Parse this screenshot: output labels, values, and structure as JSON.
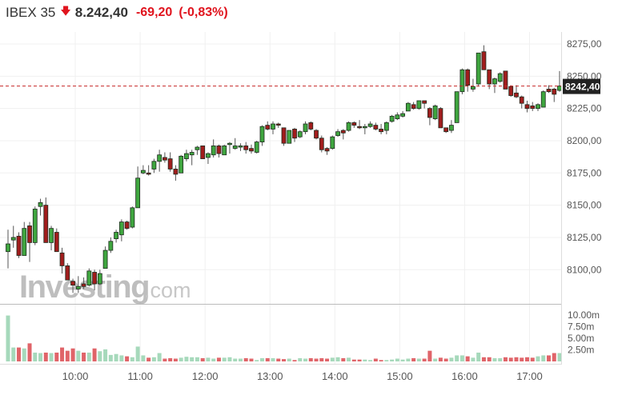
{
  "header": {
    "instrument": "IBEX 35",
    "direction_icon": "arrow-down-icon",
    "last_price": "8.242,40",
    "change": "-69,20",
    "change_percent": "(-0,83%)",
    "down_color": "#e0141e"
  },
  "watermark": {
    "brand": "Investing",
    "suffix": ".com"
  },
  "chart_data": {
    "type": "candlestick",
    "title": "",
    "price_axis": {
      "ticks": [
        8100,
        8125,
        8150,
        8175,
        8200,
        8225,
        8250,
        8275
      ],
      "tick_labels": [
        "8100,00",
        "8125,00",
        "8150,00",
        "8175,00",
        "8200,00",
        "8225,00",
        "8250,00",
        "8275,00"
      ],
      "range": [
        8075,
        8284
      ]
    },
    "current_price": {
      "value": 8242.4,
      "label": "8242,40",
      "line_color": "#c62828",
      "line_style": "dashed"
    },
    "volume_axis": {
      "ticks": [
        2.5,
        5,
        7.5,
        10
      ],
      "tick_labels": [
        "2.50m",
        "5.00m",
        "7.50m",
        "10.00m"
      ],
      "unit": "millions",
      "range": [
        0,
        10.5
      ]
    },
    "time_axis": {
      "tick_labels": [
        "10:00",
        "11:00",
        "12:00",
        "13:00",
        "14:00",
        "15:00",
        "16:00",
        "17:00"
      ]
    },
    "colors": {
      "up": "#3fa63f",
      "down": "#a11d1d",
      "volume_up": "#a6d9bb",
      "volume_down": "#e06469"
    },
    "grid": true,
    "columns": [
      "time",
      "open",
      "high",
      "low",
      "close",
      "volume_m"
    ],
    "candles": [
      [
        "09:00",
        8114,
        8131,
        8101,
        8120,
        9.9
      ],
      [
        "09:05",
        8123,
        8134,
        8117,
        8125,
        3.0
      ],
      [
        "09:10",
        8126,
        8129,
        8109,
        8111,
        3.0
      ],
      [
        "09:15",
        8111,
        8137,
        8111,
        8132,
        2.8
      ],
      [
        "09:20",
        8134,
        8137,
        8106,
        8121,
        3.9
      ],
      [
        "09:25",
        8121,
        8149,
        8119,
        8147,
        1.9
      ],
      [
        "09:30",
        8149,
        8155,
        8142,
        8152,
        1.8
      ],
      [
        "09:35",
        8150,
        8156,
        8121,
        8121,
        1.9
      ],
      [
        "09:40",
        8121,
        8134,
        8115,
        8132,
        1.8
      ],
      [
        "09:45",
        8129,
        8132,
        8114,
        8114,
        1.9
      ],
      [
        "09:50",
        8113,
        8117,
        8097,
        8103,
        3.0
      ],
      [
        "09:55",
        8103,
        8105,
        8092,
        8092,
        2.3
      ],
      [
        "10:00",
        8091,
        8093,
        8082,
        8088,
        2.8
      ],
      [
        "10:05",
        8085,
        8095,
        8082,
        8087,
        2.3
      ],
      [
        "10:10",
        8089,
        8094,
        8085,
        8087,
        1.9
      ],
      [
        "10:15",
        8088,
        8101,
        8087,
        8099,
        1.9
      ],
      [
        "10:20",
        8098,
        8100,
        8084,
        8089,
        2.8
      ],
      [
        "10:25",
        8089,
        8100,
        8088,
        8097,
        2.2
      ],
      [
        "10:30",
        8101,
        8118,
        8101,
        8115,
        2.6
      ],
      [
        "10:35",
        8115,
        8125,
        8113,
        8122,
        1.4
      ],
      [
        "10:40",
        8124,
        8131,
        8121,
        8129,
        1.6
      ],
      [
        "10:45",
        8127,
        8139,
        8122,
        8137,
        1.3
      ],
      [
        "10:50",
        8137,
        8138,
        8131,
        8132,
        1.1
      ],
      [
        "10:55",
        8133,
        8149,
        8132,
        8148,
        0.9
      ],
      [
        "11:00",
        8148,
        8180,
        8148,
        8171,
        3.2
      ],
      [
        "11:05",
        8175,
        8181,
        8174,
        8177,
        1.3
      ],
      [
        "11:10",
        8175,
        8181,
        8173,
        8174,
        0.8
      ],
      [
        "11:15",
        8178,
        8186,
        8175,
        8184,
        0.9
      ],
      [
        "11:20",
        8184,
        8193,
        8176,
        8189,
        1.8
      ],
      [
        "11:25",
        8187,
        8191,
        8183,
        8185,
        0.6
      ],
      [
        "11:30",
        8186,
        8191,
        8176,
        8178,
        0.7
      ],
      [
        "11:35",
        8178,
        8181,
        8169,
        8174,
        0.6
      ],
      [
        "11:40",
        8175,
        8189,
        8175,
        8188,
        0.8
      ],
      [
        "11:45",
        8186,
        8193,
        8184,
        8190,
        1.0
      ],
      [
        "11:50",
        8189,
        8193,
        8181,
        8191,
        0.9
      ],
      [
        "11:55",
        8193,
        8196,
        8189,
        8195,
        0.9
      ],
      [
        "12:00",
        8196,
        8196,
        8186,
        8186,
        0.7
      ],
      [
        "12:05",
        8187,
        8191,
        8182,
        8190,
        0.8
      ],
      [
        "12:10",
        8189,
        8201,
        8187,
        8196,
        0.6
      ],
      [
        "12:15",
        8196,
        8197,
        8187,
        8190,
        0.8
      ],
      [
        "12:20",
        8189,
        8197,
        8189,
        8196,
        0.8
      ],
      [
        "12:25",
        8197,
        8199,
        8190,
        8198,
        0.9
      ],
      [
        "12:30",
        8194,
        8202,
        8193,
        8196,
        0.6
      ],
      [
        "12:35",
        8195,
        8198,
        8192,
        8196,
        0.6
      ],
      [
        "12:40",
        8196,
        8199,
        8190,
        8193,
        0.7
      ],
      [
        "12:45",
        8194,
        8197,
        8190,
        8192,
        0.6
      ],
      [
        "12:50",
        8191,
        8200,
        8190,
        8199,
        0.3
      ],
      [
        "12:55",
        8199,
        8212,
        8196,
        8211,
        0.7
      ],
      [
        "13:00",
        8212,
        8215,
        8208,
        8209,
        0.7
      ],
      [
        "13:05",
        8209,
        8215,
        8205,
        8213,
        0.7
      ],
      [
        "13:10",
        8213,
        8214,
        8210,
        8212,
        0.6
      ],
      [
        "13:15",
        8210,
        8210,
        8196,
        8198,
        0.5
      ],
      [
        "13:20",
        8198,
        8208,
        8198,
        8208,
        0.6
      ],
      [
        "13:25",
        8209,
        8210,
        8199,
        8202,
        0.3
      ],
      [
        "13:30",
        8203,
        8208,
        8202,
        8207,
        0.7
      ],
      [
        "13:35",
        8207,
        8215,
        8205,
        8213,
        0.6
      ],
      [
        "13:40",
        8214,
        8215,
        8208,
        8209,
        0.7
      ],
      [
        "13:45",
        8208,
        8209,
        8201,
        8202,
        0.6
      ],
      [
        "13:50",
        8202,
        8204,
        8191,
        8193,
        0.7
      ],
      [
        "13:55",
        8194,
        8195,
        8189,
        8192,
        0.6
      ],
      [
        "14:00",
        8194,
        8204,
        8193,
        8203,
        0.8
      ],
      [
        "14:05",
        8204,
        8209,
        8203,
        8207,
        0.9
      ],
      [
        "14:10",
        8208,
        8209,
        8201,
        8206,
        0.7
      ],
      [
        "14:15",
        8208,
        8215,
        8207,
        8214,
        0.8
      ],
      [
        "14:20",
        8214,
        8215,
        8210,
        8212,
        0.4
      ],
      [
        "14:25",
        8211,
        8216,
        8209,
        8210,
        0.4
      ],
      [
        "14:30",
        8210,
        8213,
        8205,
        8211,
        0.4
      ],
      [
        "14:35",
        8211,
        8215,
        8210,
        8213,
        0.3
      ],
      [
        "14:40",
        8212,
        8214,
        8208,
        8209,
        0.6
      ],
      [
        "14:45",
        8209,
        8213,
        8205,
        8207,
        0.3
      ],
      [
        "14:50",
        8208,
        8215,
        8205,
        8214,
        0.3
      ],
      [
        "14:55",
        8215,
        8220,
        8214,
        8219,
        0.4
      ],
      [
        "15:00",
        8217,
        8222,
        8216,
        8220,
        0.6
      ],
      [
        "15:05",
        8219,
        8223,
        8218,
        8221,
        0.4
      ],
      [
        "15:10",
        8223,
        8230,
        8223,
        8229,
        0.6
      ],
      [
        "15:15",
        8228,
        8230,
        8224,
        8225,
        0.7
      ],
      [
        "15:20",
        8225,
        8231,
        8224,
        8231,
        0.6
      ],
      [
        "15:25",
        8231,
        8231,
        8225,
        8229,
        0.6
      ],
      [
        "15:30",
        8225,
        8226,
        8212,
        8218,
        2.3
      ],
      [
        "15:35",
        8217,
        8228,
        8216,
        8227,
        0.6
      ],
      [
        "15:40",
        8225,
        8226,
        8210,
        8210,
        0.8
      ],
      [
        "15:45",
        8210,
        8210,
        8206,
        8207,
        0.6
      ],
      [
        "15:50",
        8208,
        8216,
        8206,
        8212,
        0.8
      ],
      [
        "15:55",
        8214,
        8238,
        8214,
        8238,
        1.3
      ],
      [
        "16:00",
        8238,
        8256,
        8236,
        8255,
        1.3
      ],
      [
        "16:05",
        8255,
        8256,
        8238,
        8243,
        1.1
      ],
      [
        "16:10",
        8240,
        8248,
        8238,
        8242,
        0.8
      ],
      [
        "16:15",
        8244,
        8268,
        8242,
        8268,
        1.9
      ],
      [
        "16:20",
        8269,
        8274,
        8255,
        8255,
        0.9
      ],
      [
        "16:25",
        8255,
        8255,
        8240,
        8244,
        0.9
      ],
      [
        "16:30",
        8244,
        8249,
        8237,
        8248,
        0.7
      ],
      [
        "16:35",
        8246,
        8253,
        8245,
        8252,
        0.7
      ],
      [
        "16:40",
        8254,
        8254,
        8240,
        8240,
        0.9
      ],
      [
        "16:45",
        8242,
        8243,
        8234,
        8235,
        0.8
      ],
      [
        "16:50",
        8237,
        8243,
        8233,
        8234,
        0.9
      ],
      [
        "16:55",
        8234,
        8235,
        8225,
        8229,
        0.8
      ],
      [
        "17:00",
        8228,
        8231,
        8222,
        8225,
        0.9
      ],
      [
        "17:05",
        8227,
        8230,
        8223,
        8225,
        0.8
      ],
      [
        "17:10",
        8225,
        8229,
        8223,
        8228,
        1.1
      ],
      [
        "17:15",
        8226,
        8239,
        8226,
        8238,
        1.3
      ],
      [
        "17:20",
        8240,
        8243,
        8237,
        8238,
        1.3
      ],
      [
        "17:25",
        8240,
        8241,
        8230,
        8236,
        1.8
      ],
      [
        "17:30",
        8239,
        8254,
        8238,
        8242.4,
        1.8
      ]
    ]
  }
}
